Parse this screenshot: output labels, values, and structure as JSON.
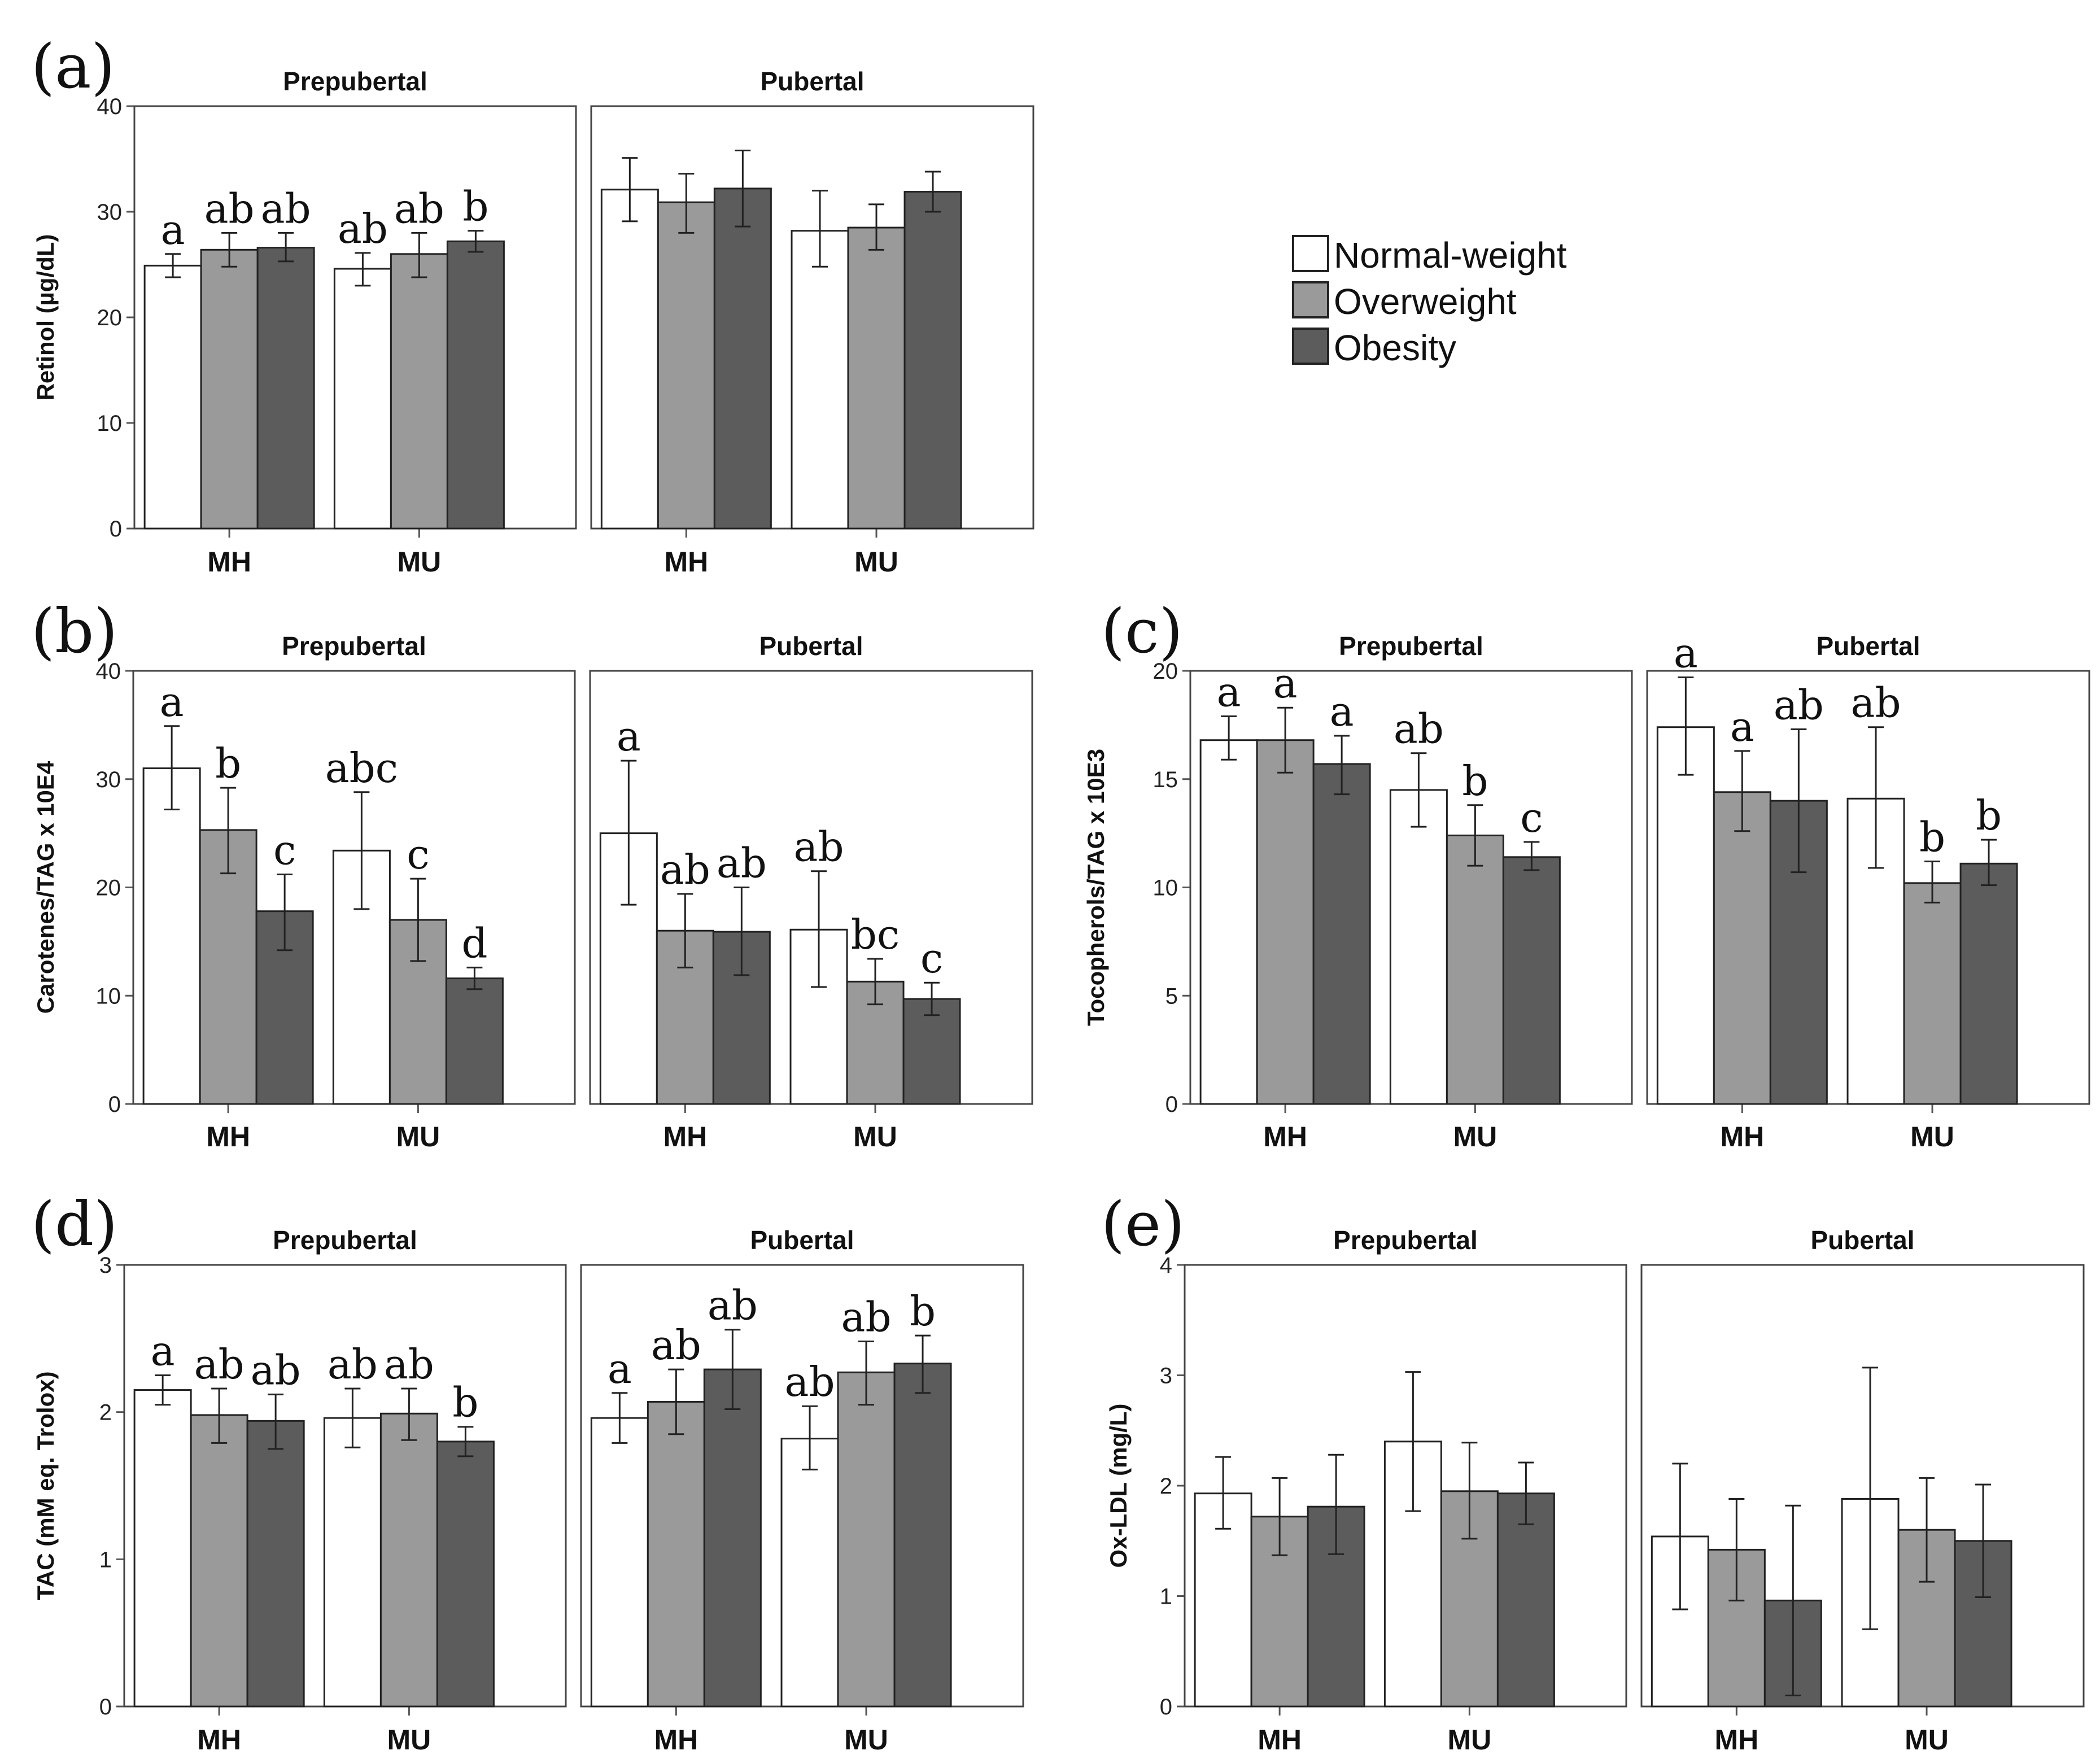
{
  "legend": {
    "items": [
      {
        "label": "Normal-weight",
        "color": "#ffffff"
      },
      {
        "label": "Overweight",
        "color": "#9a9a9a"
      },
      {
        "label": "Obesity",
        "color": "#5c5c5c"
      }
    ]
  },
  "chart_data": [
    {
      "type": "bar",
      "panel": "(a)",
      "ylabel": "Retinol (µg/dL)",
      "ylim": [
        0,
        40
      ],
      "yticks": [
        0,
        10,
        20,
        30,
        40
      ],
      "categories": [
        "MH",
        "MU"
      ],
      "series_names": [
        "Normal-weight",
        "Overweight",
        "Obesity"
      ],
      "facets": [
        {
          "title": "Prepubertal",
          "groups": [
            {
              "category": "MH",
              "values": [
                24.9,
                26.4,
                26.6
              ],
              "err_low": [
                23.8,
                24.8,
                25.3
              ],
              "err_high": [
                26.0,
                28.0,
                28.0
              ],
              "letters": [
                "a",
                "ab",
                "ab"
              ]
            },
            {
              "category": "MU",
              "values": [
                24.6,
                26.0,
                27.2
              ],
              "err_low": [
                23.0,
                23.8,
                26.2
              ],
              "err_high": [
                26.1,
                28.0,
                28.2
              ],
              "letters": [
                "ab",
                "ab",
                "b"
              ]
            }
          ]
        },
        {
          "title": "Pubertal",
          "groups": [
            {
              "category": "MH",
              "values": [
                32.1,
                30.9,
                32.2
              ],
              "err_low": [
                29.1,
                28.0,
                28.6
              ],
              "err_high": [
                35.1,
                33.6,
                35.8
              ],
              "letters": [
                "",
                "",
                ""
              ]
            },
            {
              "category": "MU",
              "values": [
                28.2,
                28.5,
                31.9
              ],
              "err_low": [
                24.8,
                26.4,
                30.0
              ],
              "err_high": [
                32.0,
                30.7,
                33.8
              ],
              "letters": [
                "",
                "",
                ""
              ]
            }
          ]
        }
      ]
    },
    {
      "type": "bar",
      "panel": "(b)",
      "ylabel": "Carotenes/TAG x 10E4",
      "ylim": [
        0,
        40
      ],
      "yticks": [
        0,
        10,
        20,
        30,
        40
      ],
      "categories": [
        "MH",
        "MU"
      ],
      "series_names": [
        "Normal-weight",
        "Overweight",
        "Obesity"
      ],
      "facets": [
        {
          "title": "Prepubertal",
          "groups": [
            {
              "category": "MH",
              "values": [
                31.0,
                25.3,
                17.8
              ],
              "err_low": [
                27.2,
                21.3,
                14.2
              ],
              "err_high": [
                34.9,
                29.2,
                21.2
              ],
              "letters": [
                "a",
                "b",
                "c"
              ]
            },
            {
              "category": "MU",
              "values": [
                23.4,
                17.0,
                11.6
              ],
              "err_low": [
                18.0,
                13.2,
                10.6
              ],
              "err_high": [
                28.8,
                20.8,
                12.6
              ],
              "letters": [
                "abc",
                "c",
                "d"
              ]
            }
          ]
        },
        {
          "title": "Pubertal",
          "groups": [
            {
              "category": "MH",
              "values": [
                25.0,
                16.0,
                15.9
              ],
              "err_low": [
                18.4,
                12.6,
                11.9
              ],
              "err_high": [
                31.7,
                19.4,
                20.0
              ],
              "letters": [
                "a",
                "ab",
                "ab"
              ]
            },
            {
              "category": "MU",
              "values": [
                16.1,
                11.3,
                9.7
              ],
              "err_low": [
                10.8,
                9.2,
                8.2
              ],
              "err_high": [
                21.5,
                13.4,
                11.2
              ],
              "letters": [
                "ab",
                "bc",
                "c"
              ]
            }
          ]
        }
      ]
    },
    {
      "type": "bar",
      "panel": "(c)",
      "ylabel": "Tocopherols/TAG x 10E3",
      "ylim": [
        0,
        20
      ],
      "yticks": [
        0,
        5,
        10,
        15,
        20
      ],
      "categories": [
        "MH",
        "MU"
      ],
      "series_names": [
        "Normal-weight",
        "Overweight",
        "Obesity"
      ],
      "facets": [
        {
          "title": "Prepubertal",
          "groups": [
            {
              "category": "MH",
              "values": [
                16.8,
                16.8,
                15.7
              ],
              "err_low": [
                15.9,
                15.3,
                14.3
              ],
              "err_high": [
                17.9,
                18.3,
                17.0
              ],
              "letters": [
                "a",
                "a",
                "a"
              ]
            },
            {
              "category": "MU",
              "values": [
                14.5,
                12.4,
                11.4
              ],
              "err_low": [
                12.8,
                11.0,
                10.8
              ],
              "err_high": [
                16.2,
                13.8,
                12.1
              ],
              "letters": [
                "ab",
                "b",
                "c"
              ]
            }
          ]
        },
        {
          "title": "Pubertal",
          "groups": [
            {
              "category": "MH",
              "values": [
                17.4,
                14.4,
                14.0
              ],
              "err_low": [
                15.2,
                12.6,
                10.7
              ],
              "err_high": [
                19.7,
                16.3,
                17.3
              ],
              "letters": [
                "a",
                "a",
                "ab"
              ]
            },
            {
              "category": "MU",
              "values": [
                14.1,
                10.2,
                11.1
              ],
              "err_low": [
                10.9,
                9.3,
                10.1
              ],
              "err_high": [
                17.4,
                11.2,
                12.2
              ],
              "letters": [
                "ab",
                "b",
                "b"
              ]
            }
          ]
        }
      ]
    },
    {
      "type": "bar",
      "panel": "(d)",
      "ylabel": "TAC (mM eq. Trolox)",
      "ylim": [
        0,
        3
      ],
      "yticks": [
        0,
        1,
        2,
        3
      ],
      "categories": [
        "MH",
        "MU"
      ],
      "series_names": [
        "Normal-weight",
        "Overweight",
        "Obesity"
      ],
      "facets": [
        {
          "title": "Prepubertal",
          "groups": [
            {
              "category": "MH",
              "values": [
                2.15,
                1.98,
                1.94
              ],
              "err_low": [
                2.05,
                1.79,
                1.75
              ],
              "err_high": [
                2.25,
                2.16,
                2.12
              ],
              "letters": [
                "a",
                "ab",
                "ab"
              ]
            },
            {
              "category": "MU",
              "values": [
                1.96,
                1.99,
                1.8
              ],
              "err_low": [
                1.76,
                1.81,
                1.7
              ],
              "err_high": [
                2.16,
                2.16,
                1.9
              ],
              "letters": [
                "ab",
                "ab",
                "b"
              ]
            }
          ]
        },
        {
          "title": "Pubertal",
          "groups": [
            {
              "category": "MH",
              "values": [
                1.96,
                2.07,
                2.29
              ],
              "err_low": [
                1.79,
                1.85,
                2.02
              ],
              "err_high": [
                2.13,
                2.29,
                2.56
              ],
              "letters": [
                "a",
                "ab",
                "ab"
              ]
            },
            {
              "category": "MU",
              "values": [
                1.82,
                2.27,
                2.33
              ],
              "err_low": [
                1.61,
                2.05,
                2.13
              ],
              "err_high": [
                2.04,
                2.48,
                2.52
              ],
              "letters": [
                "ab",
                "ab",
                "b"
              ]
            }
          ]
        }
      ]
    },
    {
      "type": "bar",
      "panel": "(e)",
      "ylabel": "Ox-LDL (mg/L)",
      "ylim": [
        0,
        4
      ],
      "yticks": [
        0,
        1,
        2,
        3,
        4
      ],
      "categories": [
        "MH",
        "MU"
      ],
      "series_names": [
        "Normal-weight",
        "Overweight",
        "Obesity"
      ],
      "facets": [
        {
          "title": "Prepubertal",
          "groups": [
            {
              "category": "MH",
              "values": [
                1.93,
                1.72,
                1.81
              ],
              "err_low": [
                1.61,
                1.37,
                1.38
              ],
              "err_high": [
                2.26,
                2.07,
                2.28
              ],
              "letters": [
                "",
                "",
                ""
              ]
            },
            {
              "category": "MU",
              "values": [
                2.4,
                1.95,
                1.93
              ],
              "err_low": [
                1.77,
                1.52,
                1.65
              ],
              "err_high": [
                3.03,
                2.39,
                2.21
              ],
              "letters": [
                "",
                "",
                ""
              ]
            }
          ]
        },
        {
          "title": "Pubertal",
          "groups": [
            {
              "category": "MH",
              "values": [
                1.54,
                1.42,
                0.96
              ],
              "err_low": [
                0.88,
                0.96,
                0.1
              ],
              "err_high": [
                2.2,
                1.88,
                1.82
              ],
              "letters": [
                "",
                "",
                ""
              ]
            },
            {
              "category": "MU",
              "values": [
                1.88,
                1.6,
                1.5
              ],
              "err_low": [
                0.7,
                1.13,
                0.99
              ],
              "err_high": [
                3.07,
                2.07,
                2.01
              ],
              "letters": [
                "",
                "",
                ""
              ]
            }
          ]
        }
      ]
    }
  ]
}
